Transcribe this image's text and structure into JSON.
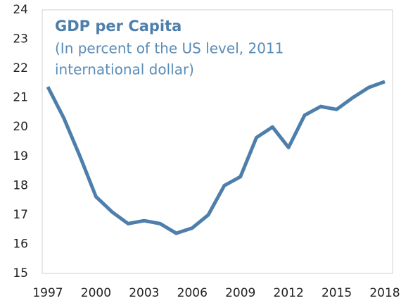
{
  "chart_data": {
    "type": "line",
    "title": "GDP per Capita",
    "subtitle": [
      "(In percent of the US level, 2011",
      "international dollar)"
    ],
    "x": [
      1997,
      1998,
      1999,
      2000,
      2001,
      2002,
      2003,
      2004,
      2005,
      2006,
      2007,
      2008,
      2009,
      2010,
      2011,
      2012,
      2013,
      2014,
      2015,
      2016,
      2017,
      2018
    ],
    "series": [
      {
        "name": "GDP per Capita",
        "color": "#4e7fab",
        "values": [
          21.37,
          20.3,
          19.0,
          17.62,
          17.1,
          16.7,
          16.8,
          16.7,
          16.37,
          16.55,
          17.0,
          18.0,
          18.3,
          19.64,
          20.0,
          19.3,
          20.4,
          20.7,
          20.6,
          21.0,
          21.35,
          21.55
        ]
      }
    ],
    "xlim": [
      1997,
      2018
    ],
    "xticks": [
      1997,
      2000,
      2003,
      2006,
      2009,
      2012,
      2015,
      2018
    ],
    "ylim": [
      15,
      24
    ],
    "yticks": [
      15,
      16,
      17,
      18,
      19,
      20,
      21,
      22,
      23,
      24
    ]
  }
}
